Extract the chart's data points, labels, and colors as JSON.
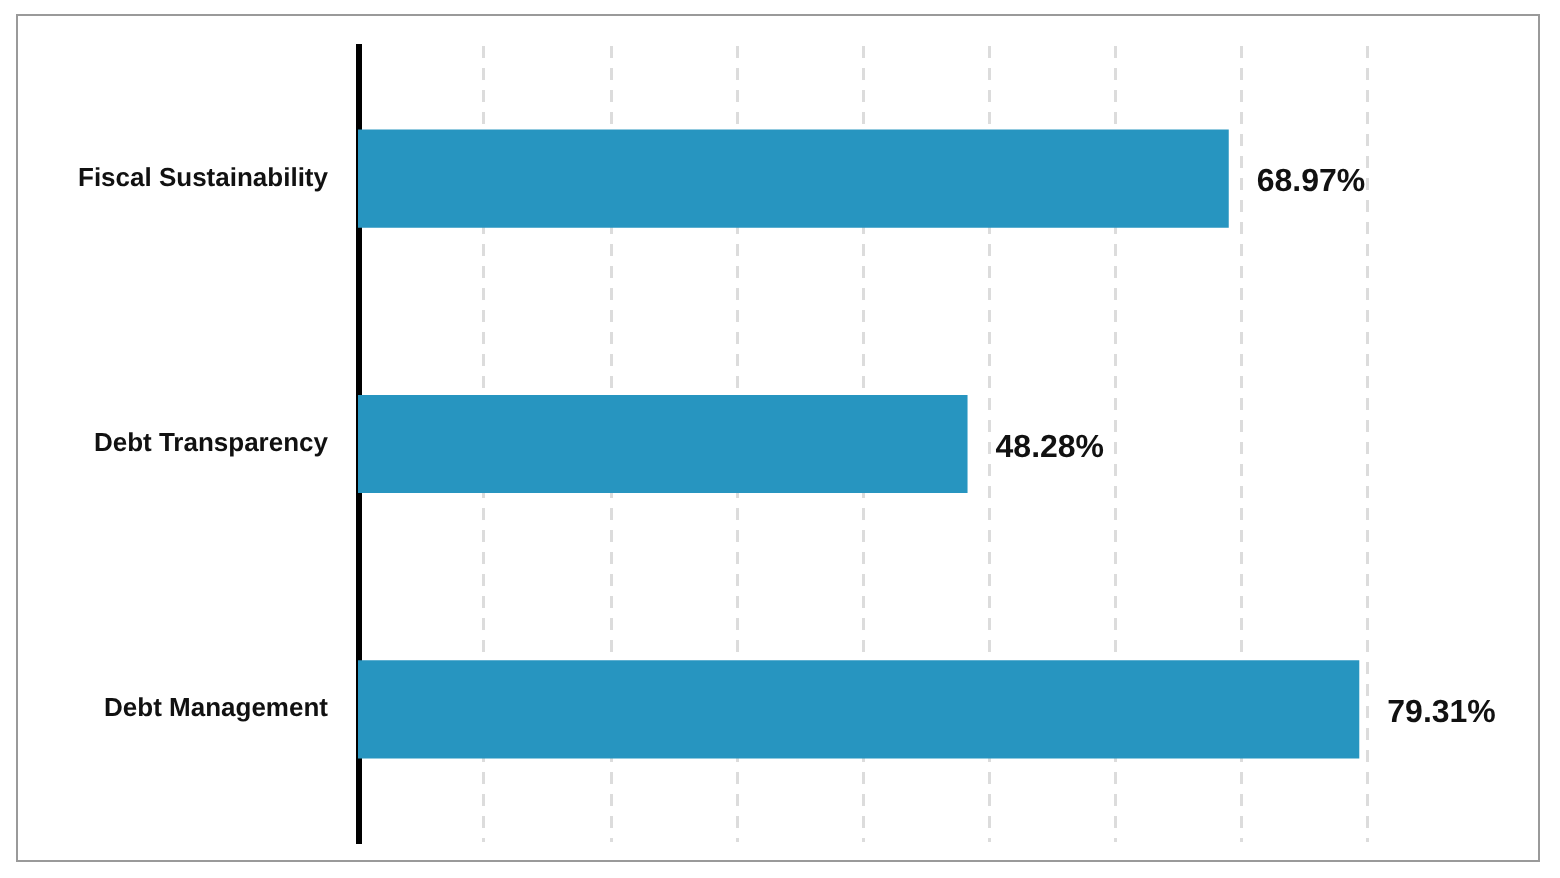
{
  "chart_data": {
    "type": "bar",
    "orientation": "horizontal",
    "categories": [
      "Fiscal Sustainability",
      "Debt Transparency",
      "Debt Management"
    ],
    "values": [
      68.97,
      48.28,
      79.31
    ],
    "color": "#2795c0",
    "value_labels": [
      "68.97%",
      "48.28%",
      "79.31%"
    ],
    "xlim": [
      0,
      80
    ],
    "xticks": [
      {
        "value": 10,
        "label": null
      },
      {
        "value": 20,
        "label": null
      },
      {
        "value": 30,
        "label": null
      },
      {
        "value": 40,
        "label": null
      },
      {
        "value": 50,
        "label": null
      },
      {
        "value": 60,
        "label": null
      },
      {
        "value": 70,
        "label": null
      },
      {
        "value": 80,
        "label": null
      }
    ],
    "grid": "x",
    "tick_labels": "y"
  }
}
